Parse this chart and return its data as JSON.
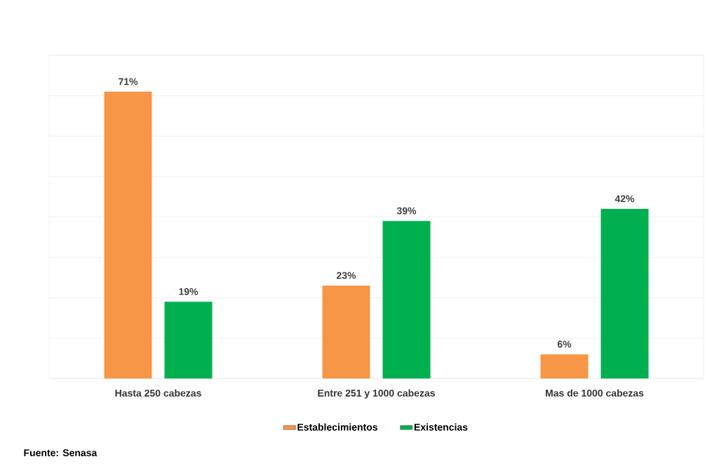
{
  "chart_data": {
    "type": "bar",
    "categories": [
      "Hasta 250 cabezas",
      "Entre 251 y 1000 cabezas",
      "Mas de 1000 cabezas"
    ],
    "series": [
      {
        "name": "Establecimientos",
        "color": "#f79646",
        "values": [
          71,
          23,
          6
        ],
        "value_labels": [
          "71%",
          "23%",
          "6%"
        ]
      },
      {
        "name": "Existencias",
        "color": "#00b050",
        "values": [
          19,
          39,
          42
        ],
        "value_labels": [
          "19%",
          "39%",
          "42%"
        ]
      }
    ],
    "ylim": [
      0,
      80
    ],
    "yticks": [
      {
        "value": 0,
        "label": null
      },
      {
        "value": 10,
        "label": null
      },
      {
        "value": 20,
        "label": null
      },
      {
        "value": 30,
        "label": null
      },
      {
        "value": 40,
        "label": null
      },
      {
        "value": 50,
        "label": null
      },
      {
        "value": 60,
        "label": null
      },
      {
        "value": 70,
        "label": null
      },
      {
        "value": 80,
        "label": null
      }
    ],
    "grid": "y",
    "legend": "bottom",
    "annotations": [
      "Fuente: Senasa"
    ]
  }
}
